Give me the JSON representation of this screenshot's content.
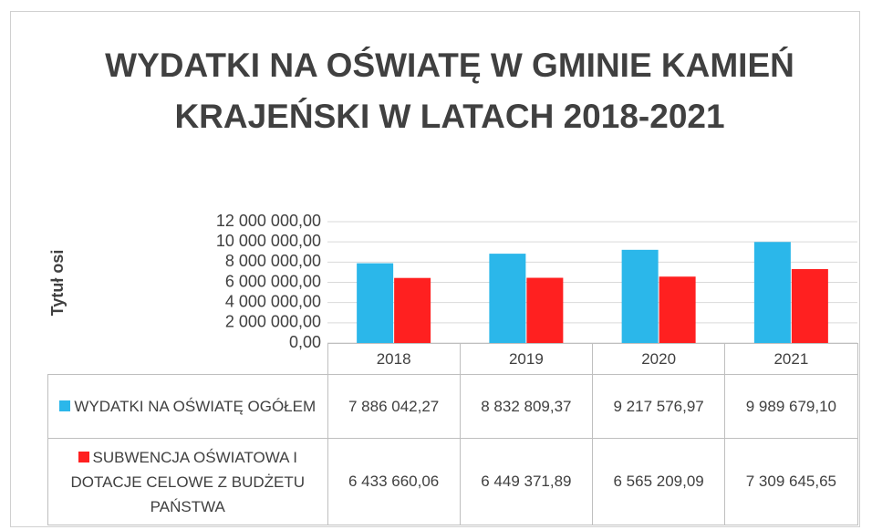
{
  "chart_data": {
    "type": "bar",
    "title": "WYDATKI NA OŚWIATĘ W GMINIE KAMIEŃ KRAJEŃSKI W LATACH 2018-2021",
    "y_axis_label": "Tytuł osi",
    "categories": [
      "2018",
      "2019",
      "2020",
      "2021"
    ],
    "series": [
      {
        "name": "WYDATKI NA OŚWIATĘ OGÓŁEM",
        "color": "#2bb7ea",
        "values": [
          7886042.27,
          8832809.37,
          9217576.97,
          9989679.1
        ],
        "value_labels": [
          "7 886 042,27",
          "8 832 809,37",
          "9 217 576,97",
          "9 989 679,10"
        ]
      },
      {
        "name": "SUBWENCJA OŚWIATOWA I DOTACJE CELOWE Z BUDŻETU PAŃSTWA",
        "color": "#ff2020",
        "values": [
          6433660.06,
          6449371.89,
          6565209.09,
          7309645.65
        ],
        "value_labels": [
          "6 433 660,06",
          "6 449 371,89",
          "6 565 209,09",
          "7 309 645,65"
        ]
      }
    ],
    "ylim": [
      0,
      12000000
    ],
    "yticks": [
      {
        "value": 0,
        "label": "0,00"
      },
      {
        "value": 2000000,
        "label": "2 000 000,00"
      },
      {
        "value": 4000000,
        "label": "4 000 000,00"
      },
      {
        "value": 6000000,
        "label": "6 000 000,00"
      },
      {
        "value": 8000000,
        "label": "8 000 000,00"
      },
      {
        "value": 10000000,
        "label": "10 000 000,00"
      },
      {
        "value": 12000000,
        "label": "12 000 000,00"
      }
    ],
    "grid": true,
    "data_table": true
  }
}
